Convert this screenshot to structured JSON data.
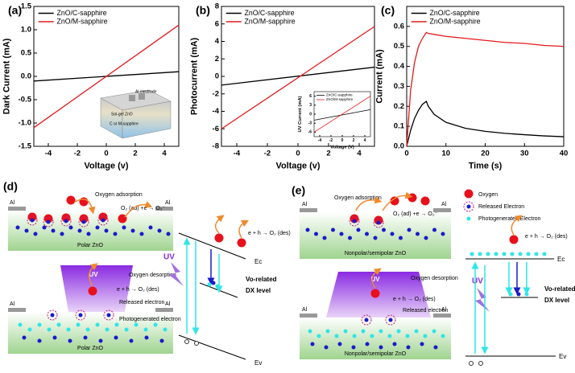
{
  "chart_data": [
    {
      "type": "line",
      "label": "(a)",
      "xlabel": "Voltage (v)",
      "ylabel": "Dark Current (mA)",
      "xlim": [
        -5,
        5
      ],
      "ylim": [
        -1.5,
        1.5
      ],
      "xticks": [
        -4,
        -2,
        0,
        2,
        4
      ],
      "yticks": [
        -1.5,
        {
          "value": -1,
          "label": "-1.0"
        },
        -0.5,
        {
          "value": 0,
          "label": "0.0"
        },
        0.5,
        {
          "value": 1,
          "label": "1.0"
        },
        1.5
      ],
      "series": [
        {
          "name": "ZnO/C-sapphire",
          "color": "#000000",
          "x": [
            -5,
            5
          ],
          "values": [
            -0.1,
            0.1
          ]
        },
        {
          "name": "ZnO/M-sapphire",
          "color": "#e41a1c",
          "x": [
            -5,
            5
          ],
          "values": [
            -1.1,
            1.1
          ]
        }
      ],
      "inset_labels": [
        "Al electrode",
        "Sol-gel ZnO",
        "C or M-sapphire"
      ]
    },
    {
      "type": "line",
      "label": "(b)",
      "xlabel": "Voltage (v)",
      "ylabel": "Photocurrent (mA)",
      "xlim": [
        -5,
        5
      ],
      "ylim": [
        -8,
        8
      ],
      "xticks": [
        -4,
        -2,
        0,
        2,
        4
      ],
      "yticks": [
        -8,
        -6,
        -4,
        -2,
        0,
        2,
        4,
        6,
        8
      ],
      "series": [
        {
          "name": "ZnO/C-sapphire",
          "color": "#000000",
          "x": [
            -5,
            5
          ],
          "values": [
            -1.0,
            1.05
          ]
        },
        {
          "name": "ZnO/M-sapphire",
          "color": "#e41a1c",
          "x": [
            -5,
            5
          ],
          "values": [
            -6.0,
            5.7
          ]
        }
      ]
    },
    {
      "type": "line",
      "label": "(c)",
      "xlabel": "Time (s)",
      "ylabel": "Current (mA)",
      "xlim": [
        0,
        40
      ],
      "ylim": [
        0,
        0.7
      ],
      "xticks": [
        0,
        10,
        20,
        30,
        40
      ],
      "yticks": [
        {
          "value": 0,
          "label": "0.0"
        },
        0.1,
        0.2,
        0.3,
        0.4,
        0.5,
        0.6
      ],
      "series": [
        {
          "name": "ZnO/C-sapphire",
          "color": "#000000",
          "x": [
            0,
            1,
            2,
            3,
            4,
            5,
            5.5,
            7,
            10,
            15,
            20,
            25,
            30,
            35,
            40
          ],
          "values": [
            0,
            0.08,
            0.14,
            0.18,
            0.21,
            0.225,
            0.2,
            0.16,
            0.12,
            0.09,
            0.075,
            0.065,
            0.058,
            0.052,
            0.048
          ]
        },
        {
          "name": "ZnO/M-sapphire",
          "color": "#e41a1c",
          "x": [
            0,
            1,
            2,
            3,
            4,
            5,
            5.5,
            7,
            10,
            15,
            20,
            25,
            30,
            35,
            40
          ],
          "values": [
            0,
            0.28,
            0.42,
            0.5,
            0.54,
            0.57,
            0.565,
            0.56,
            0.55,
            0.54,
            0.53,
            0.52,
            0.515,
            0.505,
            0.5
          ]
        }
      ]
    },
    {
      "type": "line",
      "xlabel": "Voltage (V)",
      "ylabel": "UV Current (mA)",
      "xlim": [
        -5,
        5
      ],
      "ylim": [
        -7.5,
        7.5
      ],
      "xticks": [
        -4,
        -2,
        0,
        2,
        4
      ],
      "yticks": [
        -6,
        -3,
        0,
        3,
        6
      ],
      "series": [
        {
          "name": "ZnO/C-sapphire",
          "color": "#000000",
          "x": [
            -5,
            5
          ],
          "values": [
            -2,
            1.5
          ]
        },
        {
          "name": "ZnO/M-sapphire",
          "color": "#e41a1c",
          "x": [
            -5,
            5
          ],
          "values": [
            -6,
            6
          ]
        }
      ]
    }
  ],
  "diagram_d": {
    "label": "(d)",
    "oxygen_adsorption": "Oxygen adsorption",
    "adsorption_reaction": "O₂ (ad) +e → O₂⁻",
    "al": [
      "Al",
      "Al",
      "Al",
      "Al"
    ],
    "substrate": [
      "Polar ZnO",
      "Polar ZnO"
    ],
    "uv": [
      "UV",
      "UV"
    ],
    "oxygen_desorption": "Oxygen desorption",
    "desorption_reaction": [
      "e + h → O₂ (des)",
      "e + h → O₂ (des)"
    ],
    "released": "Released electron",
    "photogenerated": "Photogenerated electron",
    "ec": "Ec",
    "dx": [
      "Vo-related",
      "DX level"
    ],
    "ev": "Ev"
  },
  "diagram_e": {
    "label": "(e)",
    "legend": [
      "Oxygen",
      "Released Electron",
      "Photogenerated Electron"
    ],
    "oxygen_adsorption": "Oxygen adsorption",
    "adsorption_reaction": "O₂ (ad) +e → O₂⁻",
    "al": [
      "Al",
      "Al",
      "Al",
      "Al"
    ],
    "substrate": [
      "Nonpolar/semipolar ZnO",
      "Nonpolar/semipolar ZnO"
    ],
    "uv": [
      "UV",
      "UV"
    ],
    "oxygen_desorption": "Oxygen desorption",
    "desorption_reaction": [
      "e + h → O₂ (des)",
      "e + h → O₂ (des)"
    ],
    "released": "Released electron",
    "ec": "Ec",
    "dx": [
      "Vo-related",
      "DX level"
    ],
    "ev": "Ev"
  }
}
